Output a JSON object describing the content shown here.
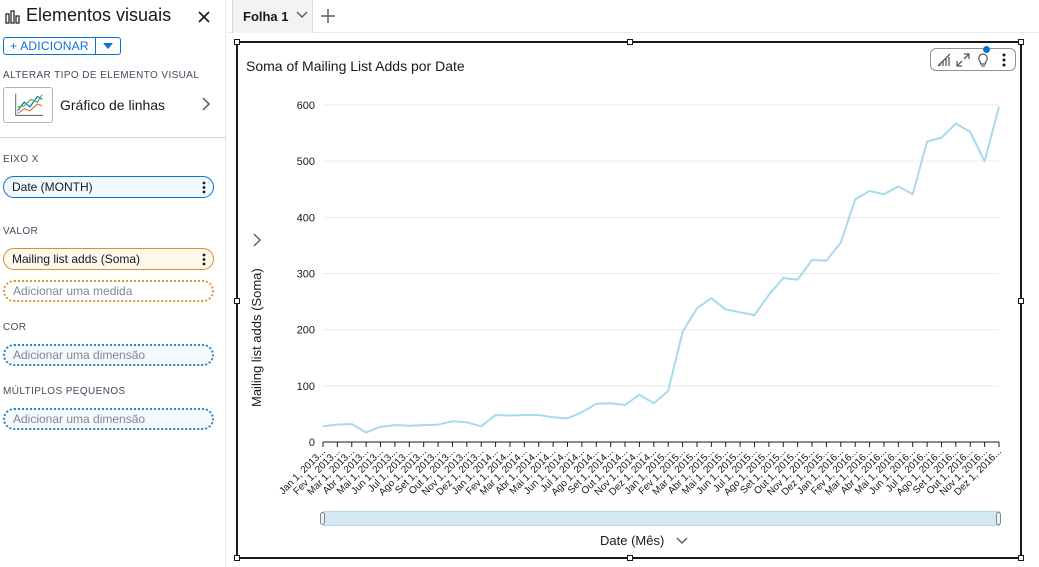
{
  "panel": {
    "title": "Elementos visuais",
    "add_label": "ADICIONAR",
    "change_type_label": "ALTERAR TIPO DE ELEMENTO VISUAL",
    "chart_type_name": "Gráfico de linhas",
    "x_axis_label": "EIXO X",
    "x_field": "Date (MONTH)",
    "value_label": "VALOR",
    "value_field": "Mailing list adds (Soma)",
    "add_measure": "Adicionar uma medida",
    "color_label": "COR",
    "add_dimension_color": "Adicionar uma dimensão",
    "small_multiples_label": "MÚLTIPLOS PEQUENOS",
    "add_dimension_multiples": "Adicionar uma dimensão"
  },
  "tabs": [
    {
      "label": "Folha 1"
    }
  ],
  "visual": {
    "title": "Soma of Mailing List Adds por Date",
    "y_axis_title": "Mailing list adds (Soma)",
    "x_axis_title": "Date (Mês)"
  },
  "colors": {
    "accent": "#0972d3",
    "line": "#a7dbec",
    "grid": "#e9ebed"
  },
  "chart_data": {
    "type": "line",
    "title": "Soma of Mailing List Adds por Date",
    "xlabel": "Date (Mês)",
    "ylabel": "Mailing list adds (Soma)",
    "ylim": [
      0,
      600
    ],
    "yticks": [
      0,
      100,
      200,
      300,
      400,
      500,
      600
    ],
    "grid": true,
    "x_tick_labels": [
      "Jan 1, 2013...",
      "Fev 1, 2013...",
      "Mar 1, 2013...",
      "Abr 1, 2013...",
      "Mai 1, 2013...",
      "Jun 1, 2013...",
      "Jul 1, 2013...",
      "Ago 1, 2013...",
      "Set 1, 2013...",
      "Out 1, 2013...",
      "Nov 1, 2013...",
      "Dez 1, 2013...",
      "Jan 1, 2014...",
      "Fev 1, 2014...",
      "Mar 1, 2014...",
      "Abr 1, 2014...",
      "Mai 1, 2014...",
      "Jun 1, 2014...",
      "Jul 1, 2014...",
      "Ago 1, 2014...",
      "Set 1, 2014...",
      "Out 1, 2014...",
      "Nov 1, 2014...",
      "Dez 1, 2014...",
      "Jan 1, 2015...",
      "Fev 1, 2015...",
      "Mar 1, 2015...",
      "Abr 1, 2015...",
      "Mai 1, 2015...",
      "Jun 1, 2015...",
      "Jul 1, 2015...",
      "Ago 1, 2015...",
      "Set 1, 2015...",
      "Out 1, 2015...",
      "Nov 1, 2015...",
      "Dez 1, 2015...",
      "Jan 1, 2016...",
      "Fev 1, 2016...",
      "Mar 1, 2016...",
      "Abr 1, 2016...",
      "Mai 1, 2016...",
      "Jun 1, 2016...",
      "Jul 1, 2016...",
      "Ago 1, 2016...",
      "Set 1, 2016...",
      "Out 1, 2016...",
      "Nov 1, 2016...",
      "Dez 1, 2016..."
    ],
    "series": [
      {
        "values": [
          28,
          31,
          32,
          17,
          27,
          30,
          29,
          30,
          31,
          37,
          35,
          28,
          48,
          47,
          48,
          48,
          44,
          42,
          53,
          68,
          69,
          66,
          84,
          69,
          91,
          196,
          238,
          256,
          236,
          231,
          226,
          262,
          292,
          289,
          324,
          323,
          355,
          432,
          447,
          441,
          455,
          441,
          535,
          542,
          567,
          552,
          500,
          597
        ]
      }
    ]
  }
}
